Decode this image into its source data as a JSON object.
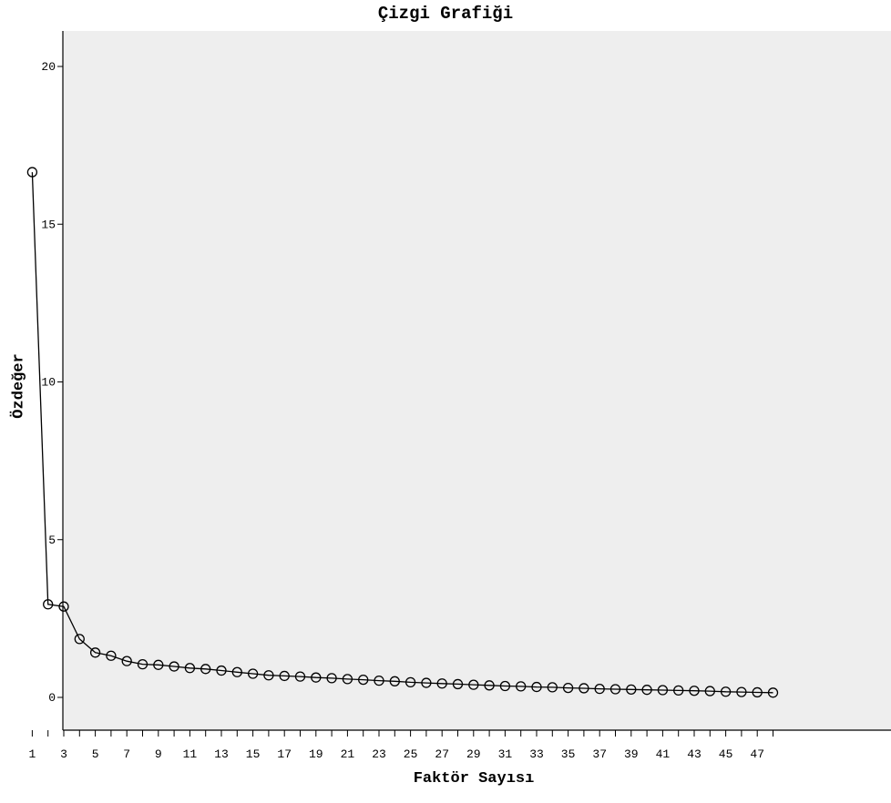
{
  "chart_data": {
    "type": "line",
    "title": "Çizgi Grafiği",
    "xlabel": "Faktör Sayısı",
    "ylabel": "Özdeğer",
    "xlim": [
      0,
      50
    ],
    "ylim": [
      -1.1,
      21.2
    ],
    "yticks": [
      0,
      5,
      10,
      15,
      20
    ],
    "xtick_labels": [
      "1",
      "3",
      "5",
      "7",
      "9",
      "11",
      "13",
      "15",
      "17",
      "19",
      "21",
      "23",
      "25",
      "27",
      "29",
      "31",
      "33",
      "35",
      "37",
      "39",
      "41",
      "43",
      "45",
      "47"
    ],
    "grid": false,
    "legend": "none",
    "plot_background": "#eeeeee",
    "line_color": "#000000",
    "marker": "open-circle",
    "x": [
      1,
      2,
      3,
      4,
      5,
      6,
      7,
      8,
      9,
      10,
      11,
      12,
      13,
      14,
      15,
      16,
      17,
      18,
      19,
      20,
      21,
      22,
      23,
      24,
      25,
      26,
      27,
      28,
      29,
      30,
      31,
      32,
      33,
      34,
      35,
      36,
      37,
      38,
      39,
      40,
      41,
      42,
      43,
      44,
      45,
      46,
      47,
      48
    ],
    "values": [
      16.65,
      2.95,
      2.88,
      1.85,
      1.42,
      1.32,
      1.15,
      1.05,
      1.03,
      0.98,
      0.93,
      0.9,
      0.85,
      0.8,
      0.75,
      0.7,
      0.68,
      0.66,
      0.63,
      0.61,
      0.58,
      0.56,
      0.53,
      0.51,
      0.48,
      0.46,
      0.44,
      0.42,
      0.4,
      0.38,
      0.36,
      0.35,
      0.33,
      0.32,
      0.3,
      0.29,
      0.27,
      0.26,
      0.25,
      0.24,
      0.23,
      0.22,
      0.21,
      0.2,
      0.18,
      0.17,
      0.16,
      0.15
    ]
  }
}
